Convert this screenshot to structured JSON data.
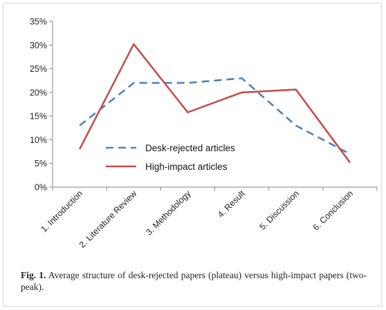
{
  "chart_data": {
    "type": "line",
    "categories": [
      "1. Introduction",
      "2. Literature Review",
      "3. Methodology",
      "4. Result",
      "5. Discussion",
      "6. Conclusion"
    ],
    "series": [
      {
        "name": "Desk-rejected articles",
        "values": [
          13,
          22,
          22,
          23,
          13,
          7
        ],
        "color": "#4f81bd",
        "style": "dashed"
      },
      {
        "name": "High-impact articles",
        "values": [
          8,
          30.2,
          15.8,
          20,
          20.6,
          5.2
        ],
        "color": "#c0504d",
        "style": "solid"
      }
    ],
    "yticks": [
      "0%",
      "5%",
      "10%",
      "15%",
      "20%",
      "25%",
      "30%",
      "35%"
    ],
    "ylim": [
      0,
      35
    ],
    "grid": false,
    "legend_position": "inside-bottom-center"
  },
  "caption": {
    "label": "Fig. 1.",
    "text": "Average structure of desk-rejected papers (plateau) versus high-impact papers (two-peak)."
  }
}
